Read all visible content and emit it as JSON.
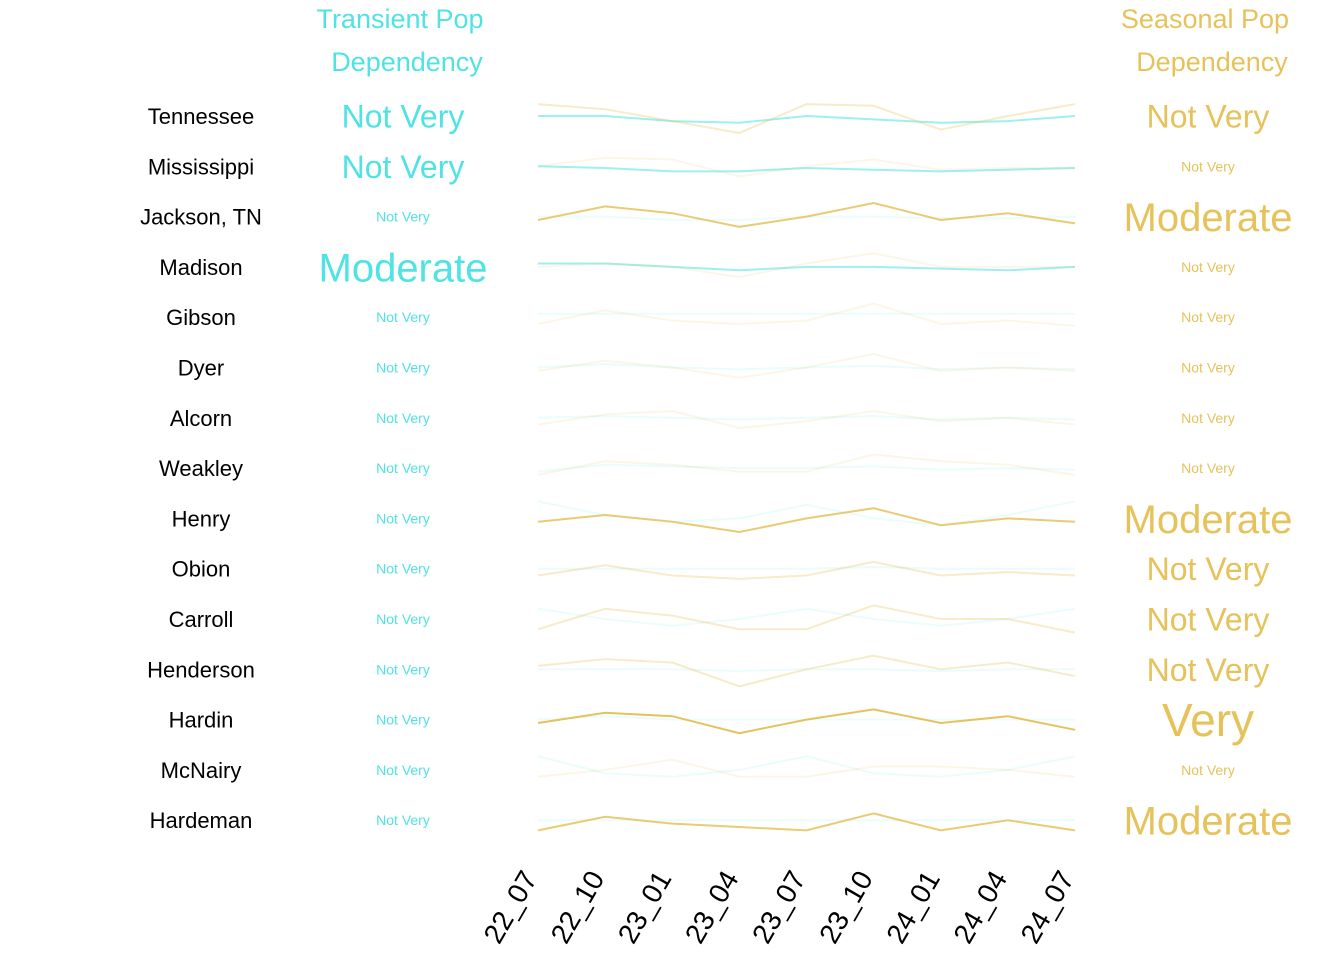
{
  "headers": {
    "transient": [
      "Transient Pop",
      "Dependency"
    ],
    "seasonal": [
      "Seasonal Pop",
      "Dependency"
    ]
  },
  "colors": {
    "transient": "#4fe3e3",
    "seasonal": "#e6c25a",
    "label": "#000000"
  },
  "chart_data": {
    "type": "line",
    "x": [
      "22_07",
      "22_10",
      "23_01",
      "23_04",
      "23_07",
      "23_10",
      "24_01",
      "24_04",
      "24_07"
    ],
    "rows": [
      {
        "name": "Tennessee",
        "transient_label": "Not Very",
        "seasonal_label": "Not Very",
        "transient": [
          0.5,
          0.5,
          0.35,
          0.3,
          0.5,
          0.4,
          0.3,
          0.35,
          0.5
        ],
        "seasonal": [
          0.85,
          0.7,
          0.35,
          0.0,
          0.85,
          0.8,
          0.1,
          0.5,
          0.85
        ]
      },
      {
        "name": "Mississippi",
        "transient_label": "Not Very",
        "seasonal_label": "Not Very",
        "transient": [
          0.5,
          0.45,
          0.35,
          0.35,
          0.45,
          0.4,
          0.35,
          0.4,
          0.45
        ],
        "seasonal": [
          0.5,
          0.75,
          0.7,
          0.2,
          0.5,
          0.7,
          0.4,
          0.45,
          0.45
        ]
      },
      {
        "name": "Jackson, TN",
        "transient_label": "Not Very",
        "seasonal_label": "Moderate",
        "transient": [
          0.5,
          0.5,
          0.4,
          0.4,
          0.5,
          0.5,
          0.45,
          0.45,
          0.5
        ],
        "seasonal": [
          0.4,
          0.8,
          0.6,
          0.2,
          0.5,
          0.9,
          0.4,
          0.6,
          0.3
        ]
      },
      {
        "name": "Madison",
        "transient_label": "Moderate",
        "seasonal_label": "Not Very",
        "transient": [
          0.6,
          0.6,
          0.5,
          0.4,
          0.5,
          0.5,
          0.45,
          0.4,
          0.5
        ],
        "seasonal": [
          0.5,
          0.6,
          0.5,
          0.2,
          0.6,
          0.9,
          0.5,
          0.5,
          0.5
        ]
      },
      {
        "name": "Gibson",
        "transient_label": "Not Very",
        "seasonal_label": "Not Very",
        "transient": [
          0.6,
          0.6,
          0.6,
          0.6,
          0.6,
          0.6,
          0.6,
          0.6,
          0.6
        ],
        "seasonal": [
          0.3,
          0.7,
          0.4,
          0.3,
          0.4,
          0.9,
          0.3,
          0.4,
          0.25
        ]
      },
      {
        "name": "Dyer",
        "transient_label": "Not Very",
        "seasonal_label": "Not Very",
        "transient": [
          0.5,
          0.6,
          0.5,
          0.45,
          0.5,
          0.55,
          0.45,
          0.5,
          0.45
        ],
        "seasonal": [
          0.4,
          0.7,
          0.5,
          0.2,
          0.5,
          0.9,
          0.4,
          0.5,
          0.4
        ]
      },
      {
        "name": "Alcorn",
        "transient_label": "Not Very",
        "seasonal_label": "Not Very",
        "transient": [
          0.5,
          0.55,
          0.5,
          0.45,
          0.5,
          0.55,
          0.45,
          0.5,
          0.45
        ],
        "seasonal": [
          0.3,
          0.6,
          0.7,
          0.2,
          0.4,
          0.7,
          0.4,
          0.5,
          0.3
        ]
      },
      {
        "name": "Weakley",
        "transient_label": "Not Very",
        "seasonal_label": "Not Very",
        "transient": [
          0.4,
          0.6,
          0.55,
          0.5,
          0.5,
          0.55,
          0.45,
          0.5,
          0.45
        ],
        "seasonal": [
          0.3,
          0.7,
          0.6,
          0.4,
          0.4,
          0.9,
          0.7,
          0.6,
          0.3
        ]
      },
      {
        "name": "Henry",
        "transient_label": "Not Very",
        "seasonal_label": "Moderate",
        "transient": [
          1.0,
          0.6,
          0.4,
          0.5,
          0.9,
          0.5,
          0.3,
          0.6,
          1.0
        ],
        "seasonal": [
          0.4,
          0.6,
          0.4,
          0.1,
          0.5,
          0.8,
          0.3,
          0.5,
          0.4
        ]
      },
      {
        "name": "Obion",
        "transient_label": "Not Very",
        "seasonal_label": "Not Very",
        "transient": [
          0.5,
          0.5,
          0.5,
          0.5,
          0.5,
          0.55,
          0.5,
          0.5,
          0.5
        ],
        "seasonal": [
          0.3,
          0.6,
          0.3,
          0.2,
          0.3,
          0.7,
          0.3,
          0.4,
          0.3
        ]
      },
      {
        "name": "Carroll",
        "transient_label": "Not Very",
        "seasonal_label": "Not Very",
        "transient": [
          0.8,
          0.5,
          0.3,
          0.5,
          0.8,
          0.5,
          0.3,
          0.5,
          0.8
        ],
        "seasonal": [
          0.2,
          0.8,
          0.6,
          0.2,
          0.2,
          0.9,
          0.5,
          0.5,
          0.1
        ]
      },
      {
        "name": "Henderson",
        "transient_label": "Not Very",
        "seasonal_label": "Not Very",
        "transient": [
          0.5,
          0.5,
          0.5,
          0.45,
          0.5,
          0.5,
          0.45,
          0.5,
          0.5
        ],
        "seasonal": [
          0.6,
          0.8,
          0.7,
          0.0,
          0.5,
          0.9,
          0.5,
          0.7,
          0.3
        ]
      },
      {
        "name": "Hardin",
        "transient_label": "Not Very",
        "seasonal_label": "Very",
        "transient": [
          0.5,
          0.6,
          0.5,
          0.5,
          0.5,
          0.5,
          0.5,
          0.5,
          0.5
        ],
        "seasonal": [
          0.4,
          0.7,
          0.6,
          0.1,
          0.5,
          0.8,
          0.4,
          0.6,
          0.2
        ]
      },
      {
        "name": "McNairy",
        "transient_label": "Not Very",
        "seasonal_label": "Not Very",
        "transient": [
          0.9,
          0.4,
          0.3,
          0.5,
          0.9,
          0.4,
          0.3,
          0.5,
          0.9
        ],
        "seasonal": [
          0.3,
          0.5,
          0.8,
          0.3,
          0.3,
          0.6,
          0.6,
          0.5,
          0.3
        ]
      },
      {
        "name": "Hardeman",
        "transient_label": "Not Very",
        "seasonal_label": "Moderate",
        "transient": [
          0.5,
          0.5,
          0.5,
          0.5,
          0.5,
          0.5,
          0.5,
          0.5,
          0.5
        ],
        "seasonal": [
          0.2,
          0.6,
          0.4,
          0.3,
          0.2,
          0.7,
          0.2,
          0.5,
          0.2
        ]
      }
    ]
  }
}
